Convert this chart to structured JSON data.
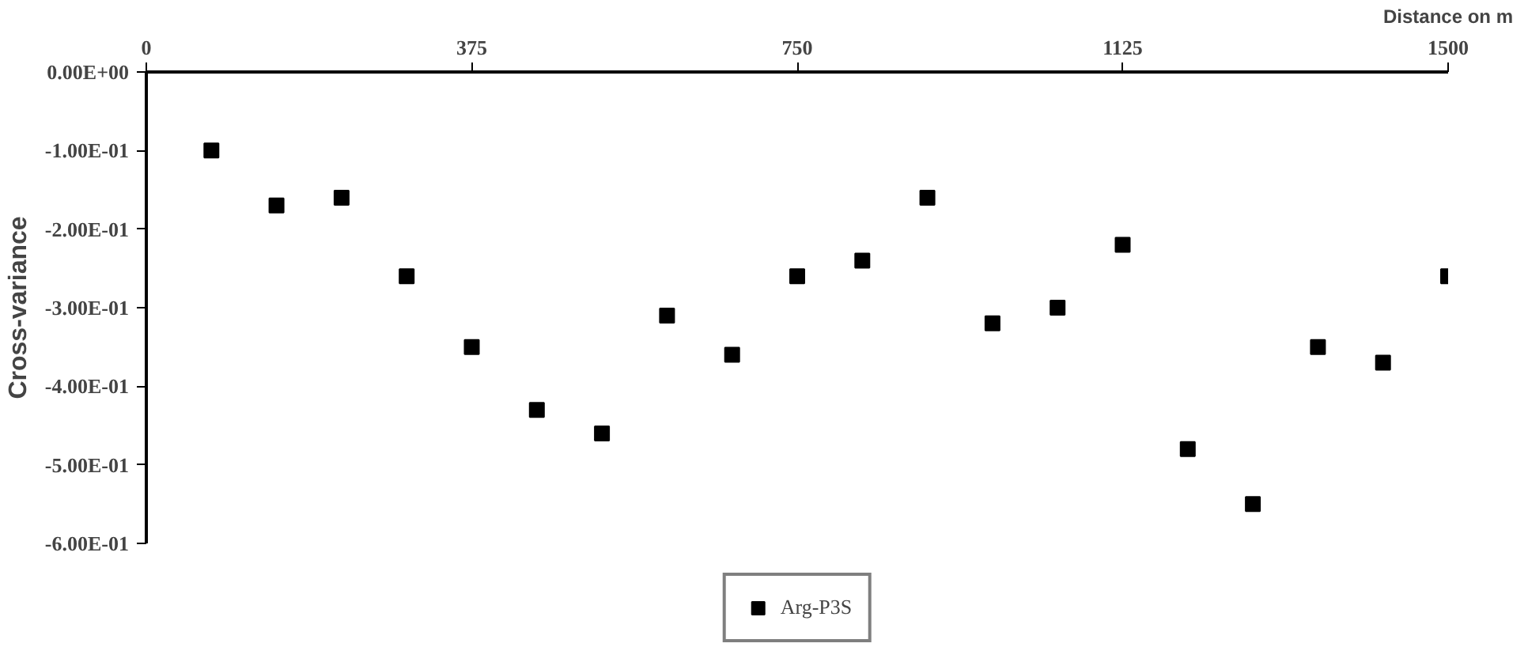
{
  "chart_data": {
    "type": "scatter",
    "xlabel": "Distance on m",
    "ylabel": "Cross-variance",
    "x": [
      75,
      150,
      225,
      300,
      375,
      450,
      525,
      600,
      675,
      750,
      825,
      900,
      975,
      1050,
      1125,
      1200,
      1275,
      1350,
      1425,
      1500
    ],
    "series": [
      {
        "name": "Arg-P3S",
        "color": "#000000",
        "values": [
          -0.1,
          -0.17,
          -0.16,
          -0.26,
          -0.35,
          -0.43,
          -0.46,
          -0.31,
          -0.36,
          -0.26,
          -0.24,
          -0.16,
          -0.32,
          -0.3,
          -0.22,
          -0.48,
          -0.55,
          -0.35,
          -0.37,
          -0.26
        ]
      }
    ],
    "xlim": [
      0,
      1500
    ],
    "ylim": [
      -0.6,
      0
    ],
    "xticks": [
      0,
      375,
      750,
      1125,
      1500
    ],
    "yticks": [
      {
        "value": 0,
        "label": "0.00E+00"
      },
      {
        "value": -0.1,
        "label": "-1.00E-01"
      },
      {
        "value": -0.2,
        "label": "-2.00E-01"
      },
      {
        "value": -0.3,
        "label": "-3.00E-01"
      },
      {
        "value": -0.4,
        "label": "-4.00E-01"
      },
      {
        "value": -0.5,
        "label": "-5.00E-01"
      },
      {
        "value": -0.6,
        "label": "-6.00E-01"
      }
    ],
    "grid": false,
    "legend": "bottom",
    "marker": "square"
  }
}
